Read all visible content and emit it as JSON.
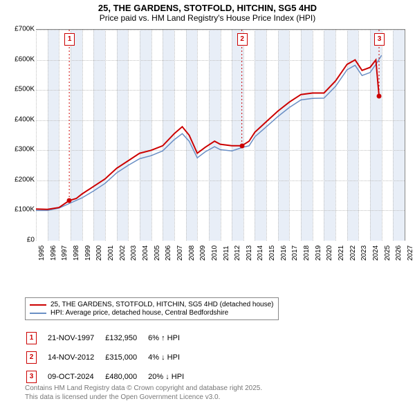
{
  "title": {
    "line1": "25, THE GARDENS, STOTFOLD, HITCHIN, SG5 4HD",
    "line2": "Price paid vs. HM Land Registry's House Price Index (HPI)"
  },
  "chart": {
    "type": "line",
    "background_color": "#ffffff",
    "grid_color": "#c0c0c0",
    "shade_color": "#e8eef7",
    "font_family": "Arial",
    "ylim": [
      0,
      700000
    ],
    "ytick_step": 100000,
    "yticks": [
      "£0",
      "£100K",
      "£200K",
      "£300K",
      "£400K",
      "£500K",
      "£600K",
      "£700K"
    ],
    "xrange": [
      1995,
      2027
    ],
    "xticks": [
      1995,
      1996,
      1997,
      1998,
      1999,
      2000,
      2001,
      2002,
      2003,
      2004,
      2005,
      2006,
      2007,
      2008,
      2009,
      2010,
      2011,
      2012,
      2013,
      2014,
      2015,
      2016,
      2017,
      2018,
      2019,
      2020,
      2021,
      2022,
      2023,
      2024,
      2025,
      2026,
      2027
    ],
    "series": [
      {
        "name": "25, THE GARDENS, STOTFOLD, HITCHIN, SG5 4HD (detached house)",
        "color": "#cc0000",
        "line_width": 2,
        "data": [
          [
            1995,
            105000
          ],
          [
            1996,
            104000
          ],
          [
            1997,
            110000
          ],
          [
            1997.89,
            132950
          ],
          [
            1998.5,
            140000
          ],
          [
            1999,
            155000
          ],
          [
            2000,
            180000
          ],
          [
            2001,
            205000
          ],
          [
            2002,
            240000
          ],
          [
            2003,
            265000
          ],
          [
            2004,
            290000
          ],
          [
            2005,
            300000
          ],
          [
            2006,
            315000
          ],
          [
            2007,
            355000
          ],
          [
            2007.7,
            378000
          ],
          [
            2008.3,
            350000
          ],
          [
            2009,
            290000
          ],
          [
            2009.7,
            310000
          ],
          [
            2010.5,
            330000
          ],
          [
            2011,
            320000
          ],
          [
            2012,
            315000
          ],
          [
            2012.87,
            315000
          ],
          [
            2013.5,
            330000
          ],
          [
            2014,
            360000
          ],
          [
            2015,
            395000
          ],
          [
            2016,
            430000
          ],
          [
            2017,
            460000
          ],
          [
            2018,
            485000
          ],
          [
            2019,
            490000
          ],
          [
            2020,
            490000
          ],
          [
            2021,
            530000
          ],
          [
            2022,
            585000
          ],
          [
            2022.7,
            600000
          ],
          [
            2023.3,
            565000
          ],
          [
            2024,
            575000
          ],
          [
            2024.5,
            600000
          ],
          [
            2024.78,
            480000
          ]
        ]
      },
      {
        "name": "HPI: Average price, detached house, Central Bedfordshire",
        "color": "#6a8fc5",
        "line_width": 1.5,
        "data": [
          [
            1995,
            100000
          ],
          [
            1996,
            100000
          ],
          [
            1997,
            108000
          ],
          [
            1998,
            125000
          ],
          [
            1999,
            142000
          ],
          [
            2000,
            165000
          ],
          [
            2001,
            190000
          ],
          [
            2002,
            225000
          ],
          [
            2003,
            250000
          ],
          [
            2004,
            272000
          ],
          [
            2005,
            282000
          ],
          [
            2006,
            298000
          ],
          [
            2007,
            335000
          ],
          [
            2007.7,
            355000
          ],
          [
            2008.3,
            330000
          ],
          [
            2009,
            275000
          ],
          [
            2009.7,
            295000
          ],
          [
            2010.5,
            312000
          ],
          [
            2011,
            302000
          ],
          [
            2012,
            298000
          ],
          [
            2013,
            310000
          ],
          [
            2013.5,
            315000
          ],
          [
            2014,
            345000
          ],
          [
            2015,
            378000
          ],
          [
            2016,
            412000
          ],
          [
            2017,
            442000
          ],
          [
            2018,
            467000
          ],
          [
            2019,
            472000
          ],
          [
            2020,
            473000
          ],
          [
            2021,
            512000
          ],
          [
            2022,
            567000
          ],
          [
            2022.7,
            582000
          ],
          [
            2023.3,
            548000
          ],
          [
            2024,
            558000
          ],
          [
            2024.5,
            585000
          ],
          [
            2025,
            615000
          ]
        ]
      }
    ],
    "markers": [
      {
        "n": "1",
        "year": 1997.89,
        "value": 132950,
        "label_top": true
      },
      {
        "n": "2",
        "year": 2012.87,
        "value": 315000,
        "label_top": true
      },
      {
        "n": "3",
        "year": 2024.78,
        "value": 480000,
        "label_top": true
      }
    ]
  },
  "legend": {
    "items": [
      {
        "color": "#cc0000",
        "label": "25, THE GARDENS, STOTFOLD, HITCHIN, SG5 4HD (detached house)"
      },
      {
        "color": "#6a8fc5",
        "label": "HPI: Average price, detached house, Central Bedfordshire"
      }
    ]
  },
  "transactions": [
    {
      "n": "1",
      "date": "21-NOV-1997",
      "price": "£132,950",
      "delta": "6% ↑ HPI"
    },
    {
      "n": "2",
      "date": "14-NOV-2012",
      "price": "£315,000",
      "delta": "4% ↓ HPI"
    },
    {
      "n": "3",
      "date": "09-OCT-2024",
      "price": "£480,000",
      "delta": "20% ↓ HPI"
    }
  ],
  "footer": {
    "line1": "Contains HM Land Registry data © Crown copyright and database right 2025.",
    "line2": "This data is licensed under the Open Government Licence v3.0."
  }
}
